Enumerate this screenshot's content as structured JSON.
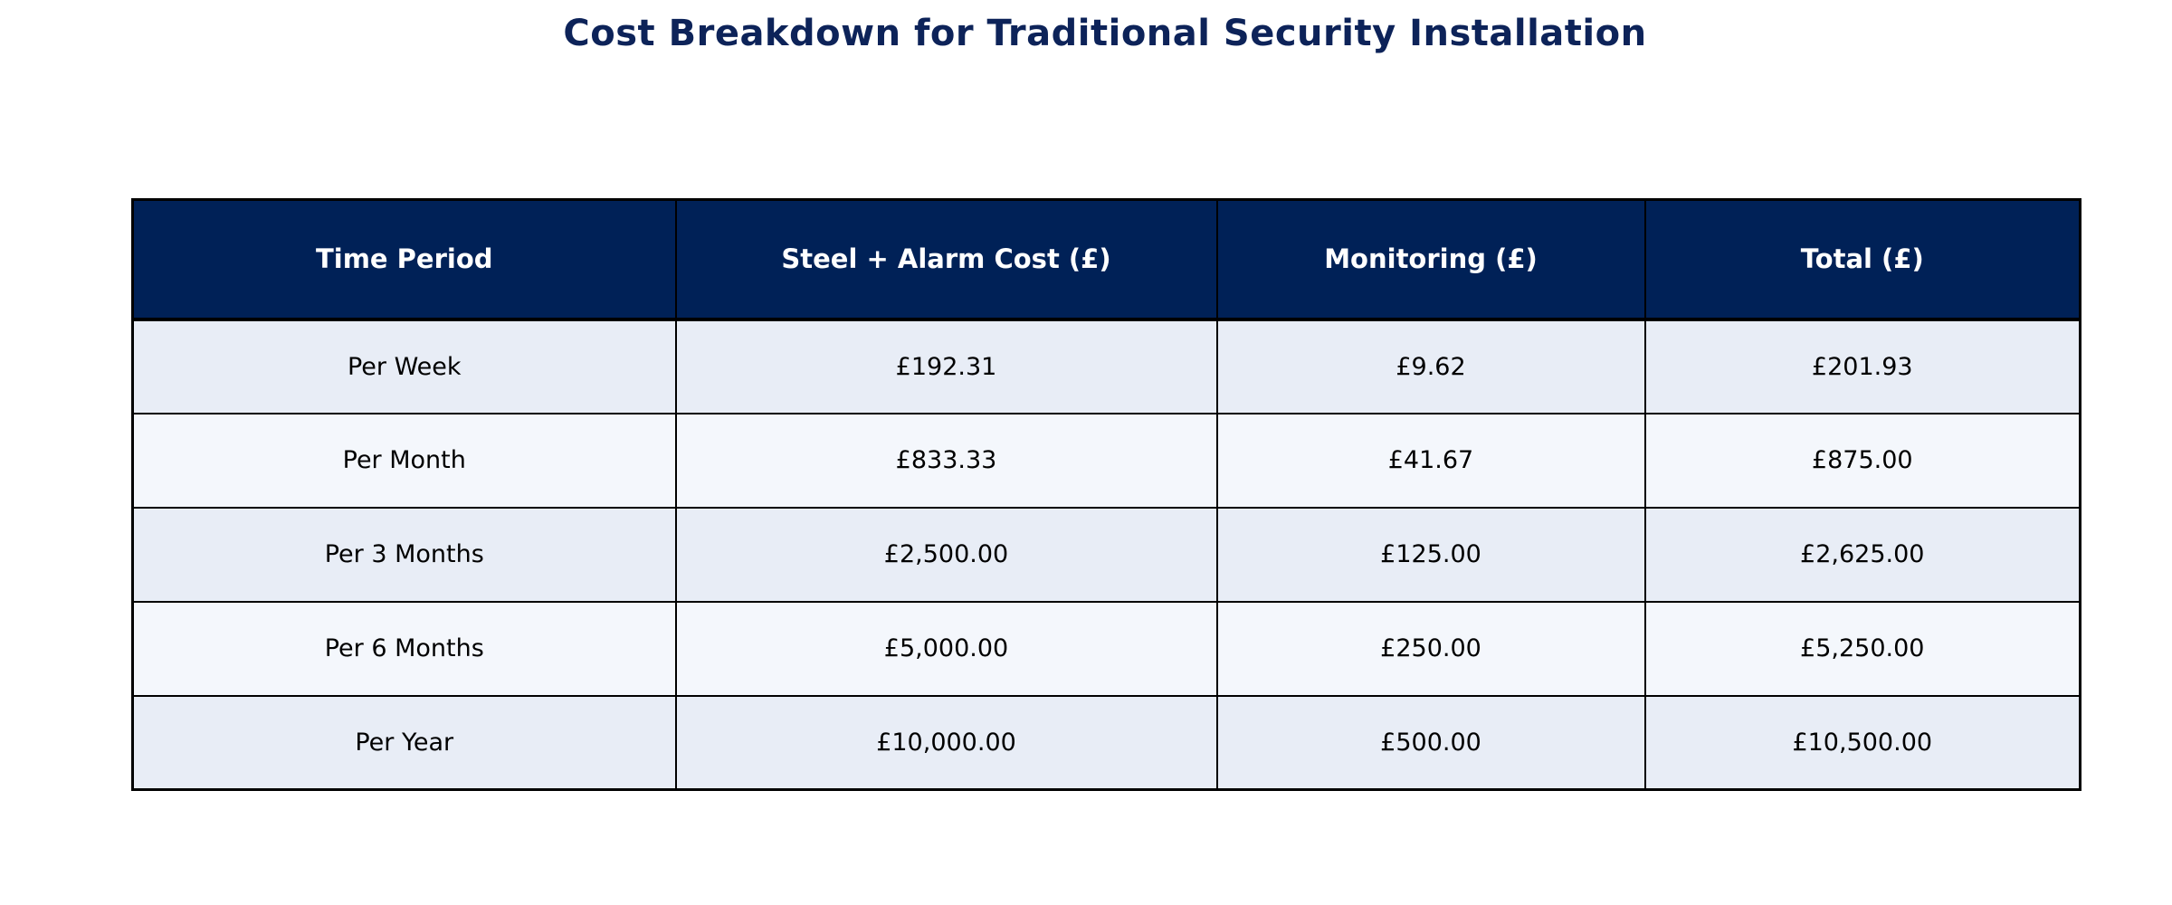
{
  "title": "Cost Breakdown for Traditional Security Installation",
  "colors": {
    "title_text": "#0d2359",
    "header_bg": "#002157",
    "header_text": "#ffffff",
    "row_odd_bg": "#e8edf6",
    "row_even_bg": "#f4f7fc",
    "border": "#000000",
    "cell_text": "#000000"
  },
  "chart_data": {
    "type": "table",
    "title": "Cost Breakdown for Traditional Security Installation",
    "columns": [
      "Time Period",
      "Steel + Alarm Cost (£)",
      "Monitoring (£)",
      "Total (£)"
    ],
    "rows": [
      [
        "Per Week",
        "£192.31",
        "£9.62",
        "£201.93"
      ],
      [
        "Per Month",
        "£833.33",
        "£41.67",
        "£875.00"
      ],
      [
        "Per 3 Months",
        "£2,500.00",
        "£125.00",
        "£2,625.00"
      ],
      [
        "Per 6 Months",
        "£5,000.00",
        "£250.00",
        "£5,250.00"
      ],
      [
        "Per Year",
        "£10,000.00",
        "£500.00",
        "£10,500.00"
      ]
    ]
  }
}
